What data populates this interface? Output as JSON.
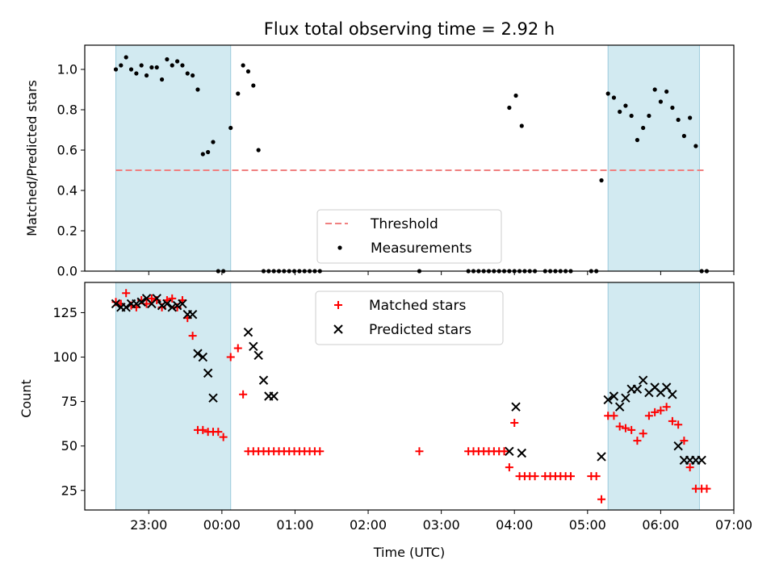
{
  "chart_data": [
    {
      "type": "scatter",
      "title": "Flux total observing time = 2.92 h",
      "xlabel": "",
      "ylabel": "Matched/Predicted stars",
      "xlim": [
        -1.875,
        7.0
      ],
      "ylim": [
        0.0,
        1.12
      ],
      "yticks": [
        0.0,
        0.2,
        0.4,
        0.6,
        0.8,
        1.0
      ],
      "shaded_regions": [
        [
          -1.45,
          0.12
        ],
        [
          5.28,
          6.53
        ]
      ],
      "threshold": {
        "name": "Threshold",
        "y": 0.5,
        "x_range": [
          -1.45,
          6.6
        ],
        "color": "#f08080"
      },
      "legend": {
        "position": "lower center",
        "entries": [
          "Threshold",
          "Measurements"
        ]
      },
      "series": [
        {
          "name": "Measurements",
          "color": "#000000",
          "x": [
            -1.45,
            -1.38,
            -1.31,
            -1.24,
            -1.17,
            -1.1,
            -1.03,
            -0.96,
            -0.89,
            -0.82,
            -0.75,
            -0.68,
            -0.61,
            -0.54,
            -0.47,
            -0.4,
            -0.33,
            -0.26,
            -0.19,
            -0.12,
            -0.05,
            0.02,
            0.12,
            0.22,
            0.29,
            0.36,
            0.43,
            0.5,
            0.57,
            0.64,
            0.71,
            0.78,
            0.85,
            0.92,
            0.99,
            1.06,
            1.13,
            1.2,
            1.27,
            1.34,
            2.7,
            3.37,
            3.44,
            3.51,
            3.58,
            3.65,
            3.72,
            3.79,
            3.86,
            3.93,
            4.0,
            4.07,
            4.14,
            4.21,
            4.28,
            4.42,
            4.49,
            4.56,
            4.63,
            4.7,
            4.77,
            3.93,
            4.02,
            4.1,
            5.05,
            5.12,
            5.19,
            5.28,
            5.36,
            5.44,
            5.52,
            5.6,
            5.68,
            5.76,
            5.84,
            5.92,
            6.0,
            6.08,
            6.16,
            6.24,
            6.32,
            6.4,
            6.48,
            6.56,
            6.63
          ],
          "y": [
            1.0,
            1.02,
            1.06,
            1.0,
            0.98,
            1.02,
            0.97,
            1.01,
            1.01,
            0.95,
            1.05,
            1.02,
            1.04,
            1.02,
            0.98,
            0.97,
            0.9,
            0.58,
            0.59,
            0.64,
            0.0,
            0.0,
            0.71,
            0.88,
            1.02,
            0.99,
            0.92,
            0.6,
            0.0,
            0.0,
            0.0,
            0.0,
            0.0,
            0.0,
            0.0,
            0.0,
            0.0,
            0.0,
            0.0,
            0.0,
            0.0,
            0.0,
            0.0,
            0.0,
            0.0,
            0.0,
            0.0,
            0.0,
            0.0,
            0.0,
            0.0,
            0.0,
            0.0,
            0.0,
            0.0,
            0.0,
            0.0,
            0.0,
            0.0,
            0.0,
            0.0,
            0.81,
            0.87,
            0.72,
            0.0,
            0.0,
            0.45,
            0.88,
            0.86,
            0.79,
            0.82,
            0.77,
            0.65,
            0.71,
            0.77,
            0.9,
            0.84,
            0.89,
            0.81,
            0.75,
            0.67,
            0.76,
            0.62,
            0.0,
            0.0
          ]
        }
      ]
    },
    {
      "type": "scatter",
      "title": "",
      "xlabel": "Time (UTC)",
      "ylabel": "Count",
      "xlim": [
        -1.875,
        7.0
      ],
      "ylim": [
        14,
        142
      ],
      "yticks": [
        25,
        50,
        75,
        100,
        125
      ],
      "xticks": [
        {
          "v": -1.0,
          "label": "23:00"
        },
        {
          "v": 0.0,
          "label": "00:00"
        },
        {
          "v": 1.0,
          "label": "01:00"
        },
        {
          "v": 2.0,
          "label": "02:00"
        },
        {
          "v": 3.0,
          "label": "03:00"
        },
        {
          "v": 4.0,
          "label": "04:00"
        },
        {
          "v": 5.0,
          "label": "05:00"
        },
        {
          "v": 6.0,
          "label": "06:00"
        },
        {
          "v": 7.0,
          "label": "07:00"
        }
      ],
      "shaded_regions": [
        [
          -1.45,
          0.12
        ],
        [
          5.28,
          6.53
        ]
      ],
      "legend": {
        "position": "upper center",
        "entries": [
          "Matched stars",
          "Predicted stars"
        ]
      },
      "series": [
        {
          "name": "Matched stars",
          "color": "#ff0000",
          "marker": "plus",
          "x": [
            -1.45,
            -1.38,
            -1.31,
            -1.24,
            -1.17,
            -1.1,
            -1.03,
            -0.96,
            -0.89,
            -0.82,
            -0.75,
            -0.68,
            -0.61,
            -0.54,
            -0.47,
            -0.4,
            -0.33,
            -0.26,
            -0.19,
            -0.12,
            -0.05,
            0.02,
            0.12,
            0.22,
            0.29,
            0.36,
            0.43,
            0.5,
            0.57,
            0.64,
            0.71,
            0.78,
            0.85,
            0.92,
            0.99,
            1.06,
            1.13,
            1.2,
            1.27,
            1.34,
            2.7,
            3.37,
            3.44,
            3.51,
            3.58,
            3.65,
            3.72,
            3.79,
            3.86,
            3.93,
            4.0,
            4.07,
            4.14,
            4.21,
            4.28,
            4.42,
            4.49,
            4.56,
            4.63,
            4.7,
            4.77,
            5.05,
            5.12,
            5.19,
            5.28,
            5.36,
            5.44,
            5.52,
            5.6,
            5.68,
            5.76,
            5.84,
            5.92,
            6.0,
            6.08,
            6.16,
            6.24,
            6.32,
            6.4,
            6.48,
            6.56,
            6.63
          ],
          "y": [
            131,
            130,
            136,
            129,
            128,
            132,
            130,
            133,
            132,
            128,
            132,
            133,
            128,
            132,
            122,
            112,
            59,
            59,
            58,
            58,
            58,
            55,
            100,
            105,
            79,
            47,
            47,
            47,
            47,
            47,
            47,
            47,
            47,
            47,
            47,
            47,
            47,
            47,
            47,
            47,
            47,
            47,
            47,
            47,
            47,
            47,
            47,
            47,
            47,
            38,
            63,
            33,
            33,
            33,
            33,
            33,
            33,
            33,
            33,
            33,
            33,
            33,
            33,
            20,
            67,
            67,
            61,
            60,
            59,
            53,
            57,
            67,
            69,
            70,
            72,
            64,
            62,
            53,
            38,
            26,
            26,
            26
          ]
        },
        {
          "name": "Predicted stars",
          "color": "#000000",
          "marker": "x",
          "x": [
            -1.45,
            -1.38,
            -1.31,
            -1.24,
            -1.17,
            -1.1,
            -1.03,
            -0.96,
            -0.89,
            -0.82,
            -0.75,
            -0.68,
            -0.61,
            -0.54,
            -0.47,
            -0.4,
            -0.33,
            -0.26,
            -0.19,
            -0.12,
            0.36,
            0.43,
            0.5,
            0.57,
            0.64,
            0.71,
            3.93,
            4.02,
            4.1,
            5.19,
            5.28,
            5.36,
            5.44,
            5.52,
            5.6,
            5.68,
            5.76,
            5.84,
            5.92,
            6.0,
            6.08,
            6.16,
            6.24,
            6.32,
            6.4,
            6.48,
            6.56
          ],
          "y": [
            130,
            128,
            128,
            130,
            130,
            131,
            133,
            130,
            133,
            129,
            130,
            128,
            129,
            130,
            124,
            124,
            102,
            100,
            91,
            77,
            114,
            106,
            101,
            87,
            78,
            78,
            47,
            72,
            46,
            44,
            76,
            78,
            72,
            77,
            82,
            82,
            87,
            80,
            83,
            80,
            83,
            79,
            50,
            42,
            42,
            42,
            42
          ]
        }
      ]
    }
  ]
}
